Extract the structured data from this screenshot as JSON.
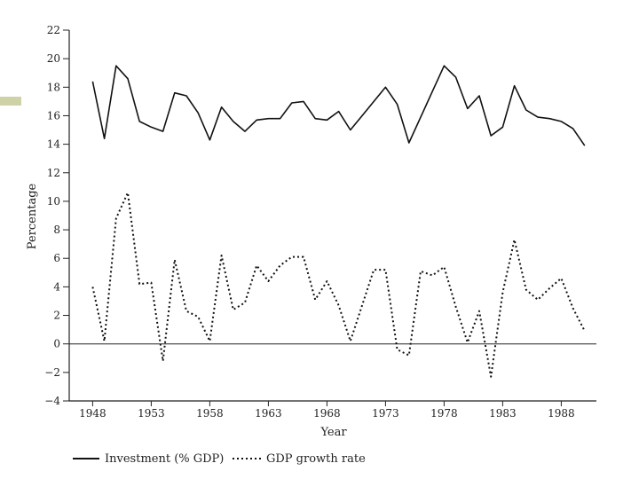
{
  "chart_data": {
    "type": "line",
    "xlabel": "Year",
    "ylabel": "Percentage",
    "xlim": [
      1946,
      1991
    ],
    "ylim": [
      -4,
      22
    ],
    "x_ticks": [
      1948,
      1953,
      1958,
      1963,
      1968,
      1973,
      1978,
      1983,
      1988
    ],
    "y_ticks": [
      -4,
      -2,
      0,
      2,
      4,
      6,
      8,
      10,
      12,
      14,
      16,
      18,
      20,
      22
    ],
    "zero_line": true,
    "legend_position": "bottom-left",
    "colors": {
      "line": "#111111",
      "axis": "#222222",
      "accent": "#cfd2a6"
    },
    "series": [
      {
        "name": "Investment (% GDP)",
        "style": "solid",
        "x": [
          1948,
          1949,
          1950,
          1951,
          1952,
          1953,
          1954,
          1955,
          1956,
          1957,
          1958,
          1959,
          1960,
          1961,
          1962,
          1963,
          1964,
          1965,
          1966,
          1967,
          1968,
          1969,
          1970,
          1971,
          1972,
          1973,
          1974,
          1975,
          1976,
          1977,
          1978,
          1979,
          1980,
          1981,
          1982,
          1983,
          1984,
          1985,
          1986,
          1987,
          1988,
          1989,
          1990
        ],
        "values": [
          18.4,
          14.4,
          19.5,
          18.6,
          15.6,
          15.2,
          14.9,
          17.6,
          17.4,
          16.2,
          14.3,
          16.6,
          15.6,
          14.9,
          15.7,
          15.8,
          15.8,
          16.9,
          17.0,
          15.8,
          15.7,
          16.3,
          15.0,
          16.0,
          17.0,
          18.0,
          16.8,
          14.1,
          15.9,
          17.7,
          19.5,
          18.7,
          16.5,
          17.4,
          14.6,
          15.2,
          18.1,
          16.4,
          15.9,
          15.8,
          15.6,
          15.1,
          13.9
        ]
      },
      {
        "name": "GDP growth rate",
        "style": "dotted",
        "x": [
          1948,
          1949,
          1950,
          1951,
          1952,
          1953,
          1954,
          1955,
          1956,
          1957,
          1958,
          1959,
          1960,
          1961,
          1962,
          1963,
          1964,
          1965,
          1966,
          1967,
          1968,
          1969,
          1970,
          1971,
          1972,
          1973,
          1974,
          1975,
          1976,
          1977,
          1978,
          1979,
          1980,
          1981,
          1982,
          1983,
          1984,
          1985,
          1986,
          1987,
          1988,
          1989,
          1990
        ],
        "values": [
          4.0,
          0.2,
          8.8,
          10.6,
          4.2,
          4.3,
          -1.2,
          5.9,
          2.3,
          1.9,
          0.2,
          6.2,
          2.4,
          2.9,
          5.5,
          4.4,
          5.5,
          6.1,
          6.1,
          3.1,
          4.4,
          2.7,
          0.2,
          2.7,
          5.2,
          5.2,
          -0.4,
          -0.8,
          5.1,
          4.8,
          5.4,
          2.6,
          0.1,
          2.3,
          -2.3,
          3.6,
          7.3,
          3.8,
          3.1,
          3.9,
          4.6,
          2.5,
          0.9
        ]
      }
    ]
  }
}
